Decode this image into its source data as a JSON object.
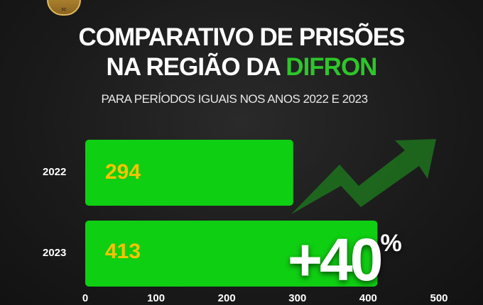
{
  "logo": {
    "text": "SC"
  },
  "title_line1": "COMPARATIVO DE PRISÕES",
  "title_line2_prefix": "NA REGIÃO DA ",
  "title_line2_highlight": "DIFRON",
  "subtitle": "PARA PERÍODOS IGUAIS NOS ANOS 2022 E 2023",
  "colors": {
    "bar": "#0fcf12",
    "value_label": "#f2c400",
    "highlight": "#2ec52a",
    "arrow": "#1e6e1e"
  },
  "chart_data": {
    "type": "bar",
    "orientation": "horizontal",
    "categories": [
      "2022",
      "2023"
    ],
    "values": [
      294,
      413
    ],
    "value_labels": [
      "294",
      "413"
    ],
    "xlim": [
      0,
      500
    ],
    "xticks": [
      "0",
      "100",
      "200",
      "300",
      "400",
      "500"
    ],
    "grid": false,
    "annotation": {
      "text": "+40",
      "suffix": "%",
      "icon": "trend-up-arrow-icon"
    }
  }
}
